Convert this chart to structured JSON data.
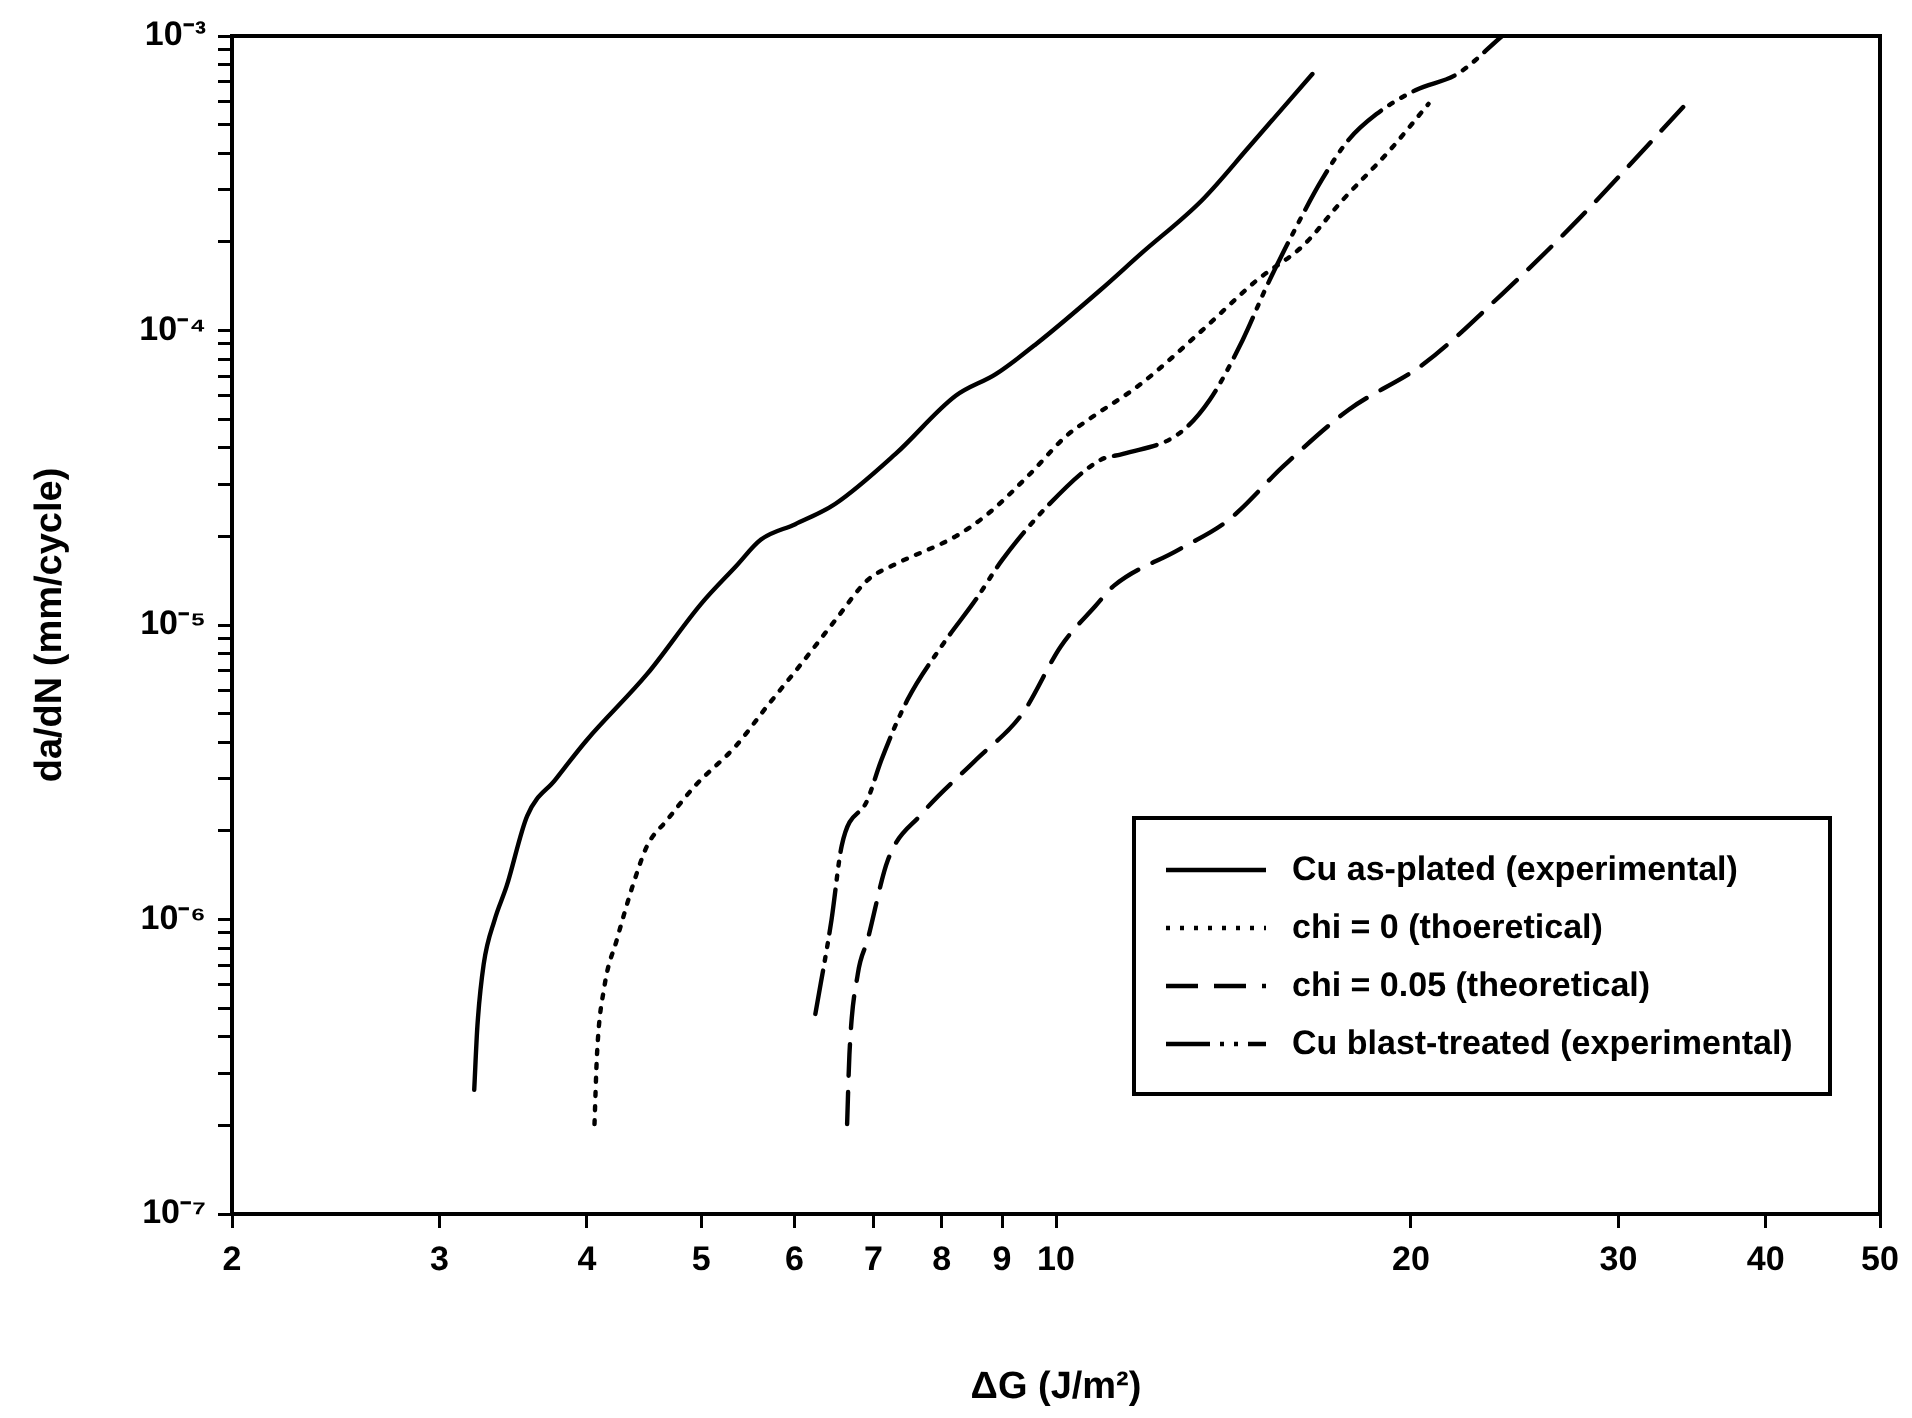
{
  "chart_data": {
    "type": "line",
    "xlabel": "ΔG (J/m²)",
    "ylabel": "da/dN (mm/cycle)",
    "log": "xy",
    "xlim": [
      2,
      50
    ],
    "ylim": [
      1e-07,
      0.001
    ],
    "xticks": [
      2,
      3,
      4,
      5,
      6,
      7,
      8,
      9,
      10,
      20,
      30,
      40,
      50
    ],
    "yticks": [
      {
        "value": 1e-07,
        "label": "10⁻⁷"
      },
      {
        "value": 2e-07,
        "label": null
      },
      {
        "value": 3e-07,
        "label": null
      },
      {
        "value": 4e-07,
        "label": null
      },
      {
        "value": 5e-07,
        "label": null
      },
      {
        "value": 6e-07,
        "label": null
      },
      {
        "value": 7e-07,
        "label": null
      },
      {
        "value": 8e-07,
        "label": null
      },
      {
        "value": 9e-07,
        "label": null
      },
      {
        "value": 1e-06,
        "label": "10⁻⁶"
      },
      {
        "value": 2e-06,
        "label": null
      },
      {
        "value": 3e-06,
        "label": null
      },
      {
        "value": 4e-06,
        "label": null
      },
      {
        "value": 5e-06,
        "label": null
      },
      {
        "value": 6e-06,
        "label": null
      },
      {
        "value": 7e-06,
        "label": null
      },
      {
        "value": 8e-06,
        "label": null
      },
      {
        "value": 9e-06,
        "label": null
      },
      {
        "value": 1e-05,
        "label": "10⁻⁵"
      },
      {
        "value": 2e-05,
        "label": null
      },
      {
        "value": 3e-05,
        "label": null
      },
      {
        "value": 4e-05,
        "label": null
      },
      {
        "value": 5e-05,
        "label": null
      },
      {
        "value": 6e-05,
        "label": null
      },
      {
        "value": 7e-05,
        "label": null
      },
      {
        "value": 8e-05,
        "label": null
      },
      {
        "value": 9e-05,
        "label": null
      },
      {
        "value": 0.0001,
        "label": "10⁻⁴"
      },
      {
        "value": 0.0002,
        "label": null
      },
      {
        "value": 0.0003,
        "label": null
      },
      {
        "value": 0.0004,
        "label": null
      },
      {
        "value": 0.0005,
        "label": null
      },
      {
        "value": 0.0006,
        "label": null
      },
      {
        "value": 0.0007,
        "label": null
      },
      {
        "value": 0.0008,
        "label": null
      },
      {
        "value": 0.0009,
        "label": null
      },
      {
        "value": 0.001,
        "label": "10⁻³"
      }
    ],
    "grid": false,
    "legend": "bottom right",
    "marker": "none",
    "series": [
      {
        "name": "Cu as-plated (experimental)",
        "color": "#000000",
        "line_style": "solid",
        "x": [
          3.21,
          3.23,
          3.27,
          3.34,
          3.42,
          3.56,
          3.76,
          4.0,
          4.5,
          5.0,
          5.35,
          5.62,
          6.01,
          6.5,
          7.31,
          8.22,
          8.89,
          9.62,
          10.9,
          11.8,
          13.3,
          14.6,
          16.5
        ],
        "values": [
          2.64e-07,
          4.35e-07,
          7.06e-07,
          9.96e-07,
          1.3e-06,
          2.25e-06,
          2.98e-06,
          4.07e-06,
          6.82e-06,
          1.18e-05,
          1.58e-05,
          1.95e-05,
          2.2e-05,
          2.58e-05,
          3.81e-05,
          6e-05,
          7.11e-05,
          9e-05,
          0.000137,
          0.000182,
          0.000277,
          0.000423,
          0.000743
        ]
      },
      {
        "name": "chi = 0 (thoeretical)",
        "color": "#000000",
        "line_style": "dotted",
        "x": [
          4.06,
          4.08,
          4.14,
          4.24,
          4.39,
          4.5,
          4.68,
          4.94,
          5.35,
          5.69,
          6.08,
          6.5,
          6.92,
          7.31,
          8.22,
          8.75,
          9.47,
          10.2,
          10.7,
          11.8,
          13.3,
          14.8,
          16.2,
          17.5,
          19.2,
          20.7
        ],
        "values": [
          2.02e-07,
          3.49e-07,
          5.94e-07,
          8.51e-07,
          1.36e-06,
          1.78e-06,
          2.18e-06,
          2.84e-06,
          3.88e-06,
          5.31e-06,
          7.38e-06,
          1.04e-05,
          1.42e-05,
          1.61e-05,
          2e-05,
          2.38e-05,
          3.21e-05,
          4.38e-05,
          5.04e-05,
          6.58e-05,
          0.0001,
          0.000148,
          0.000194,
          0.000277,
          0.00041,
          0.000588
        ]
      },
      {
        "name": "chi = 0.05 (theoretical)",
        "color": "#000000",
        "line_style": "dashed",
        "x": [
          6.65,
          6.68,
          6.79,
          6.92,
          7.2,
          7.69,
          8.55,
          9.36,
          10.1,
          10.8,
          11.2,
          12.7,
          14.0,
          15.6,
          17.7,
          20.5,
          23.9,
          27.7,
          34.1
        ],
        "values": [
          2.02e-07,
          3.49e-07,
          6.53e-07,
          8.51e-07,
          1.59e-06,
          2.28e-06,
          3.48e-06,
          4.99e-06,
          8.49e-06,
          1.16e-05,
          1.36e-05,
          1.8e-05,
          2.27e-05,
          3.47e-05,
          5.37e-05,
          7.69e-05,
          0.000133,
          0.000237,
          0.000578
        ]
      },
      {
        "name": "Cu blast-treated (experimental)",
        "color": "#000000",
        "line_style": "dashdot",
        "x": [
          6.25,
          6.45,
          6.58,
          6.92,
          7.11,
          7.48,
          8.0,
          8.55,
          9.0,
          9.84,
          10.9,
          11.4,
          12.7,
          13.5,
          14.4,
          15.1,
          16.0,
          16.8,
          17.7,
          18.7,
          20.2,
          21.9,
          23.9
        ],
        "values": [
          4.78e-07,
          9.96e-07,
          1.78e-06,
          2.55e-06,
          3.48e-06,
          5.56e-06,
          8.49e-06,
          1.22e-05,
          1.66e-05,
          2.54e-05,
          3.63e-05,
          3.81e-05,
          4.45e-05,
          5.81e-05,
          9.29e-05,
          0.000142,
          0.000226,
          0.000324,
          0.000443,
          0.000543,
          0.000656,
          0.000743,
          0.001
        ]
      }
    ]
  }
}
